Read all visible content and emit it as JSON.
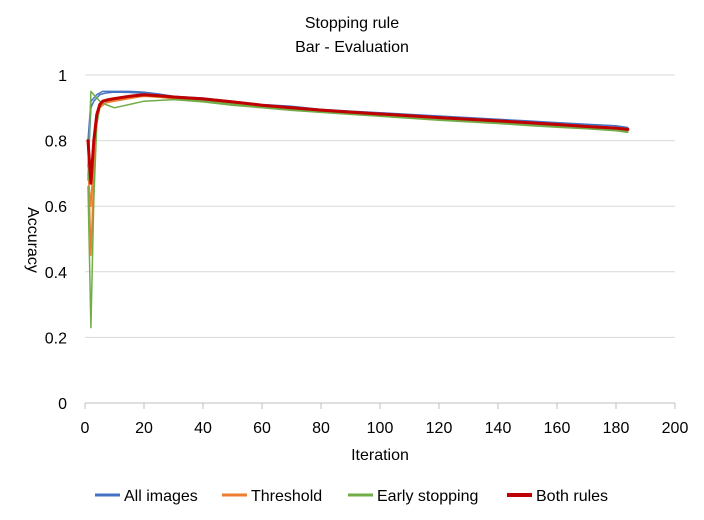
{
  "chart_data": {
    "type": "line",
    "title": "Stopping rule",
    "subtitle": "Bar - Evaluation",
    "xlabel": "Iteration",
    "ylabel": "Accuracy",
    "xlim": [
      0,
      200
    ],
    "ylim": [
      0,
      1
    ],
    "x_ticks": [
      0,
      20,
      40,
      60,
      80,
      100,
      120,
      140,
      160,
      180,
      200
    ],
    "y_ticks": [
      0,
      0.2,
      0.4,
      0.6,
      0.8,
      1
    ],
    "y_tick_labels": [
      "0",
      "0.2",
      "0.4",
      "0.6",
      "0.8",
      "1"
    ],
    "grid": true,
    "legend_position": "bottom",
    "series": [
      {
        "name": "All images",
        "color": "#4472c4",
        "runs": [
          {
            "x": [
              1,
              2,
              3,
              4,
              5,
              6,
              8,
              10,
              15,
              20,
              25,
              30,
              40,
              50,
              60,
              70,
              80,
              90,
              100,
              110,
              120,
              130,
              140,
              150,
              160,
              170,
              180,
              184
            ],
            "y": [
              0.8,
              0.92,
              0.93,
              0.94,
              0.945,
              0.95,
              0.95,
              0.95,
              0.95,
              0.948,
              0.942,
              0.935,
              0.93,
              0.92,
              0.91,
              0.905,
              0.895,
              0.89,
              0.885,
              0.88,
              0.875,
              0.87,
              0.865,
              0.86,
              0.855,
              0.85,
              0.845,
              0.84
            ]
          },
          {
            "x": [
              1,
              2,
              3,
              4,
              5,
              7,
              10,
              15,
              20,
              30,
              40,
              50,
              60,
              70,
              80,
              90,
              100,
              110,
              120,
              130,
              140,
              150,
              160,
              170,
              180,
              184
            ],
            "y": [
              0.72,
              0.9,
              0.92,
              0.93,
              0.94,
              0.945,
              0.948,
              0.947,
              0.944,
              0.93,
              0.925,
              0.915,
              0.908,
              0.9,
              0.893,
              0.888,
              0.882,
              0.877,
              0.871,
              0.866,
              0.861,
              0.856,
              0.851,
              0.846,
              0.84,
              0.835
            ]
          }
        ]
      },
      {
        "name": "Threshold",
        "color": "#ed7d31",
        "runs": [
          {
            "x": [
              1,
              2,
              3,
              4,
              5,
              6,
              8,
              10,
              15,
              20,
              25,
              30,
              40,
              50,
              60,
              70,
              80,
              90,
              100,
              110,
              120,
              130,
              140,
              150,
              160,
              170,
              180,
              184
            ],
            "y": [
              0.78,
              0.45,
              0.7,
              0.86,
              0.9,
              0.91,
              0.92,
              0.925,
              0.93,
              0.935,
              0.932,
              0.928,
              0.92,
              0.915,
              0.905,
              0.9,
              0.893,
              0.887,
              0.88,
              0.874,
              0.868,
              0.863,
              0.858,
              0.852,
              0.846,
              0.84,
              0.836,
              0.832
            ]
          },
          {
            "x": [
              1,
              2,
              3,
              4,
              5,
              7,
              10,
              15,
              20,
              30,
              40,
              50,
              60,
              70,
              80,
              90,
              100,
              110,
              120,
              130,
              140,
              150,
              160,
              170,
              180,
              184
            ],
            "y": [
              0.7,
              0.6,
              0.78,
              0.88,
              0.9,
              0.915,
              0.92,
              0.928,
              0.936,
              0.93,
              0.922,
              0.912,
              0.902,
              0.897,
              0.89,
              0.884,
              0.879,
              0.873,
              0.867,
              0.862,
              0.856,
              0.85,
              0.844,
              0.839,
              0.834,
              0.83
            ]
          }
        ]
      },
      {
        "name": "Early stopping",
        "color": "#70ad47",
        "runs": [
          {
            "x": [
              1,
              2,
              3,
              4,
              5,
              6,
              8,
              10,
              15,
              20,
              25,
              30,
              40,
              50,
              60,
              70,
              80,
              90,
              100,
              110,
              120,
              130,
              140,
              150,
              160,
              170,
              180,
              184
            ],
            "y": [
              0.66,
              0.23,
              0.62,
              0.85,
              0.9,
              0.92,
              0.925,
              0.93,
              0.935,
              0.938,
              0.935,
              0.93,
              0.922,
              0.912,
              0.902,
              0.895,
              0.888,
              0.882,
              0.877,
              0.872,
              0.866,
              0.86,
              0.855,
              0.85,
              0.843,
              0.838,
              0.832,
              0.828
            ]
          },
          {
            "x": [
              1,
              2,
              3,
              4,
              5,
              7,
              10,
              15,
              20,
              30,
              40,
              50,
              60,
              70,
              80,
              90,
              100,
              110,
              120,
              130,
              140,
              150,
              160,
              170,
              180,
              184
            ],
            "y": [
              0.68,
              0.95,
              0.94,
              0.93,
              0.92,
              0.91,
              0.9,
              0.91,
              0.92,
              0.925,
              0.918,
              0.908,
              0.9,
              0.892,
              0.886,
              0.88,
              0.874,
              0.868,
              0.862,
              0.857,
              0.852,
              0.846,
              0.841,
              0.836,
              0.83,
              0.825
            ]
          }
        ]
      },
      {
        "name": "Both rules",
        "color": "#c00000",
        "runs": [
          {
            "x": [
              1,
              2,
              3,
              4,
              5,
              6,
              8,
              10,
              15,
              20,
              25,
              30,
              35,
              40,
              50,
              60,
              70,
              80,
              90,
              100,
              110,
              120,
              130,
              140,
              150,
              160,
              170,
              180,
              184
            ],
            "y": [
              0.8,
              0.67,
              0.8,
              0.88,
              0.91,
              0.92,
              0.925,
              0.928,
              0.935,
              0.94,
              0.937,
              0.933,
              0.93,
              0.927,
              0.918,
              0.908,
              0.9,
              0.893,
              0.887,
              0.881,
              0.876,
              0.87,
              0.865,
              0.86,
              0.855,
              0.849,
              0.843,
              0.838,
              0.834
            ]
          }
        ]
      }
    ]
  }
}
